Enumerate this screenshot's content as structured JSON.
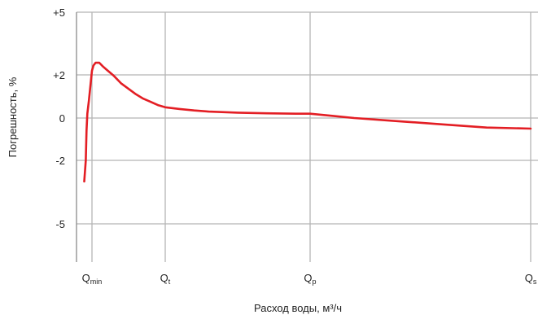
{
  "chart_data": {
    "type": "line",
    "title": "",
    "xlabel": "Расход воды, м³/ч",
    "ylabel": "Погрешность, %",
    "grid": true,
    "colors": {
      "line": "#e31e24",
      "grid": "#b5b5b5",
      "axis": "#8a8a8a"
    },
    "y_ticks": [
      {
        "label": "+5",
        "value": 5
      },
      {
        "label": "+2",
        "value": 2
      },
      {
        "label": "0",
        "value": 0
      },
      {
        "label": "-2",
        "value": -2
      },
      {
        "label": "-5",
        "value": -5
      }
    ],
    "x_ticks": [
      {
        "base": "Q",
        "sub": "min",
        "value": 1
      },
      {
        "base": "Q",
        "sub": "t",
        "value": 2
      },
      {
        "base": "Q",
        "sub": "p",
        "value": 3
      },
      {
        "base": "Q",
        "sub": "s",
        "value": 4
      }
    ],
    "series": [
      {
        "x": [
          0.95,
          0.96,
          0.965,
          0.97,
          0.98,
          0.99,
          1.0,
          1.02,
          1.05,
          1.1,
          1.15,
          1.2,
          1.3,
          1.4,
          1.5,
          1.6,
          1.7,
          1.8,
          1.9,
          2.0,
          2.1,
          2.2,
          2.3,
          2.5,
          2.7,
          2.9,
          3.0,
          3.1,
          3.2,
          3.4,
          3.6,
          3.8,
          4.0
        ],
        "y": [
          -3.0,
          -2.0,
          -0.6,
          0.2,
          0.8,
          1.5,
          2.2,
          2.45,
          2.58,
          2.58,
          2.4,
          2.25,
          1.95,
          1.6,
          1.35,
          1.1,
          0.9,
          0.75,
          0.6,
          0.5,
          0.42,
          0.35,
          0.3,
          0.25,
          0.22,
          0.2,
          0.2,
          0.1,
          0.0,
          -0.15,
          -0.3,
          -0.45,
          -0.5
        ]
      }
    ]
  }
}
